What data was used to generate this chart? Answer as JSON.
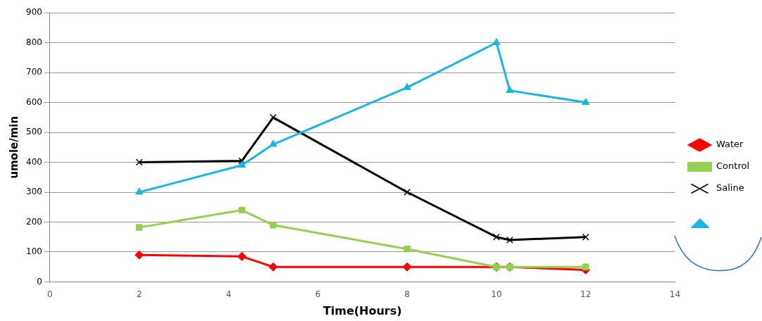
{
  "chart_data": {
    "type": "line",
    "xlabel": "Time(Hours)",
    "ylabel": "umole/min",
    "xlim": [
      0,
      14
    ],
    "xticks": [
      0,
      2,
      4,
      6,
      8,
      10,
      12,
      14
    ],
    "ylim": [
      0,
      900
    ],
    "yticks": [
      0,
      100,
      200,
      300,
      400,
      500,
      600,
      700,
      800,
      900
    ],
    "grid": "y",
    "legend": "right",
    "line_style": "solid",
    "series": [
      {
        "name": "Water",
        "color": "#ff0000",
        "marker": "diamond",
        "x": [
          2,
          4.3,
          5,
          8,
          10,
          10.3,
          12
        ],
        "values": [
          90,
          85,
          50,
          50,
          50,
          50,
          40
        ]
      },
      {
        "name": "Control",
        "color": "#92d050",
        "marker": "square",
        "x": [
          2,
          4.3,
          5,
          8,
          10,
          10.3,
          12
        ],
        "values": [
          182,
          240,
          190,
          110,
          50,
          50,
          50
        ]
      },
      {
        "name": "Saline",
        "color": "#000000",
        "marker": "cross",
        "x": [
          2,
          4.3,
          5,
          8,
          10,
          10.3,
          12
        ],
        "values": [
          400,
          405,
          550,
          300,
          150,
          140,
          150
        ]
      },
      {
        "color": "#1cb4e6",
        "marker": "triangle",
        "x": [
          2,
          4.3,
          5,
          8,
          10,
          10.3,
          12
        ],
        "values": [
          300,
          390,
          460,
          650,
          800,
          640,
          600
        ]
      }
    ]
  }
}
